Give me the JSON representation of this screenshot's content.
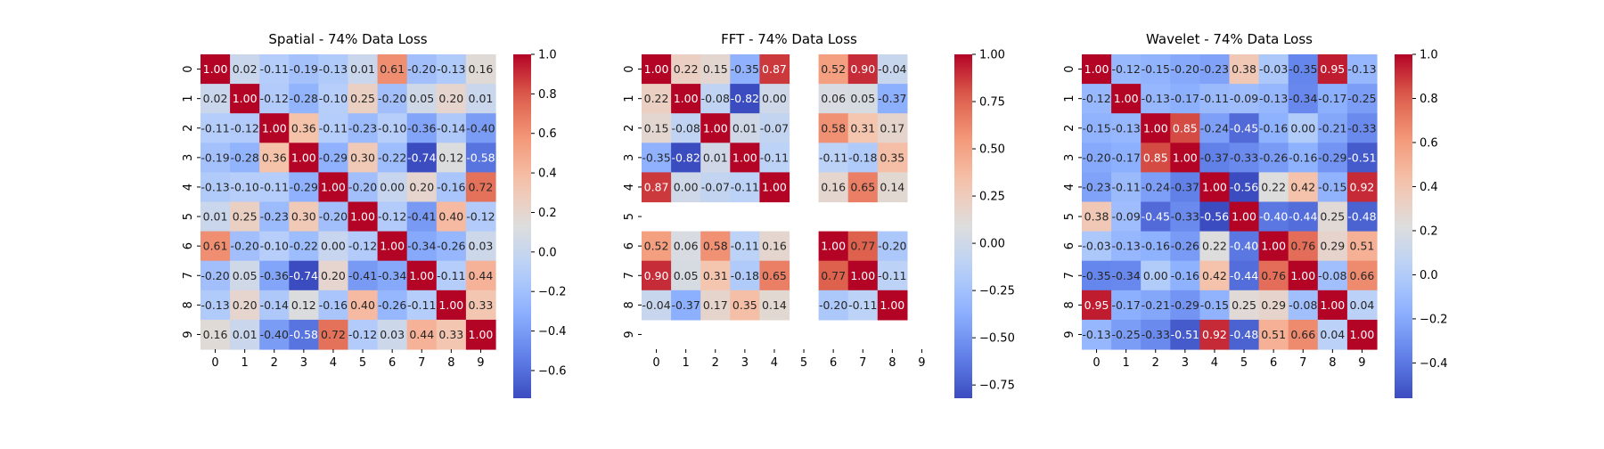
{
  "chart_data": [
    {
      "type": "heatmap",
      "title": "Spatial - 74% Data Loss",
      "x_categories": [
        "0",
        "1",
        "2",
        "3",
        "4",
        "5",
        "6",
        "7",
        "8",
        "9"
      ],
      "y_categories": [
        "0",
        "1",
        "2",
        "3",
        "4",
        "5",
        "6",
        "7",
        "8",
        "9"
      ],
      "colormap": "coolwarm",
      "vmin": -0.74,
      "vmax": 1.0,
      "colorbar_ticks": [
        -0.6,
        -0.4,
        -0.2,
        0.0,
        0.2,
        0.4,
        0.6,
        0.8,
        1.0
      ],
      "colorbar_tick_labels": [
        "−0.6",
        "−0.4",
        "−0.2",
        "0.0",
        "0.2",
        "0.4",
        "0.6",
        "0.8",
        "1.0"
      ],
      "values": [
        [
          1.0,
          0.02,
          -0.11,
          -0.19,
          -0.13,
          0.01,
          0.61,
          -0.2,
          -0.13,
          0.16
        ],
        [
          0.02,
          1.0,
          -0.12,
          -0.28,
          -0.1,
          0.25,
          -0.2,
          0.05,
          0.2,
          0.01
        ],
        [
          -0.11,
          -0.12,
          1.0,
          0.36,
          -0.11,
          -0.23,
          -0.1,
          -0.36,
          -0.14,
          -0.4
        ],
        [
          -0.19,
          -0.28,
          0.36,
          1.0,
          -0.29,
          0.3,
          -0.22,
          -0.74,
          0.12,
          -0.58
        ],
        [
          -0.13,
          -0.1,
          -0.11,
          -0.29,
          1.0,
          -0.2,
          -0.0,
          0.2,
          -0.16,
          0.72
        ],
        [
          0.01,
          0.25,
          -0.23,
          0.3,
          -0.2,
          1.0,
          -0.12,
          -0.41,
          0.4,
          -0.12
        ],
        [
          0.61,
          -0.2,
          -0.1,
          -0.22,
          -0.0,
          -0.12,
          1.0,
          -0.34,
          -0.26,
          0.03
        ],
        [
          -0.2,
          0.05,
          -0.36,
          -0.74,
          0.2,
          -0.41,
          -0.34,
          1.0,
          -0.11,
          0.44
        ],
        [
          -0.13,
          0.2,
          -0.14,
          0.12,
          -0.16,
          0.4,
          -0.26,
          -0.11,
          1.0,
          0.33
        ],
        [
          0.16,
          0.01,
          -0.4,
          -0.58,
          0.72,
          -0.12,
          0.03,
          0.44,
          0.33,
          1.0
        ]
      ]
    },
    {
      "type": "heatmap",
      "title": "FFT - 74% Data Loss",
      "x_categories": [
        "0",
        "1",
        "2",
        "3",
        "4",
        "5",
        "6",
        "7",
        "8",
        "9"
      ],
      "y_categories": [
        "0",
        "1",
        "2",
        "3",
        "4",
        "5",
        "6",
        "7",
        "8",
        "9"
      ],
      "colormap": "coolwarm",
      "vmin": -0.82,
      "vmax": 1.0,
      "colorbar_ticks": [
        -0.75,
        -0.5,
        -0.25,
        0.0,
        0.25,
        0.5,
        0.75,
        1.0
      ],
      "colorbar_tick_labels": [
        "−0.75",
        "−0.50",
        "−0.25",
        "0.00",
        "0.25",
        "0.50",
        "0.75",
        "1.00"
      ],
      "values": [
        [
          1.0,
          0.22,
          0.15,
          -0.35,
          0.87,
          null,
          0.52,
          0.9,
          -0.04,
          null
        ],
        [
          0.22,
          1.0,
          -0.08,
          -0.82,
          -0.0,
          null,
          0.06,
          0.05,
          -0.37,
          null
        ],
        [
          0.15,
          -0.08,
          1.0,
          0.01,
          -0.07,
          null,
          0.58,
          0.31,
          0.17,
          null
        ],
        [
          -0.35,
          -0.82,
          0.01,
          1.0,
          -0.11,
          null,
          -0.11,
          -0.18,
          0.35,
          null
        ],
        [
          0.87,
          -0.0,
          -0.07,
          -0.11,
          1.0,
          null,
          0.16,
          0.65,
          0.14,
          null
        ],
        [
          null,
          null,
          null,
          null,
          null,
          null,
          null,
          null,
          null,
          null
        ],
        [
          0.52,
          0.06,
          0.58,
          -0.11,
          0.16,
          null,
          1.0,
          0.77,
          -0.2,
          null
        ],
        [
          0.9,
          0.05,
          0.31,
          -0.18,
          0.65,
          null,
          0.77,
          1.0,
          -0.11,
          null
        ],
        [
          -0.04,
          -0.37,
          0.17,
          0.35,
          0.14,
          null,
          -0.2,
          -0.11,
          1.0,
          null
        ],
        [
          null,
          null,
          null,
          null,
          null,
          null,
          null,
          null,
          null,
          null
        ]
      ]
    },
    {
      "type": "heatmap",
      "title": "Wavelet - 74% Data Loss",
      "x_categories": [
        "0",
        "1",
        "2",
        "3",
        "4",
        "5",
        "6",
        "7",
        "8",
        "9"
      ],
      "y_categories": [
        "0",
        "1",
        "2",
        "3",
        "4",
        "5",
        "6",
        "7",
        "8",
        "9"
      ],
      "colormap": "coolwarm",
      "vmin": -0.56,
      "vmax": 1.0,
      "colorbar_ticks": [
        -0.4,
        -0.2,
        0.0,
        0.2,
        0.4,
        0.6,
        0.8,
        1.0
      ],
      "colorbar_tick_labels": [
        "−0.4",
        "−0.2",
        "0.0",
        "0.2",
        "0.4",
        "0.6",
        "0.8",
        "1.0"
      ],
      "values": [
        [
          1.0,
          -0.12,
          -0.15,
          -0.2,
          -0.23,
          0.38,
          -0.03,
          -0.35,
          0.95,
          -0.13
        ],
        [
          -0.12,
          1.0,
          -0.13,
          -0.17,
          -0.11,
          -0.09,
          -0.13,
          -0.34,
          -0.17,
          -0.25
        ],
        [
          -0.15,
          -0.13,
          1.0,
          0.85,
          -0.24,
          -0.45,
          -0.16,
          -0.0,
          -0.21,
          -0.33
        ],
        [
          -0.2,
          -0.17,
          0.85,
          1.0,
          -0.37,
          -0.33,
          -0.26,
          -0.16,
          -0.29,
          -0.51
        ],
        [
          -0.23,
          -0.11,
          -0.24,
          -0.37,
          1.0,
          -0.56,
          0.22,
          0.42,
          -0.15,
          0.92
        ],
        [
          0.38,
          -0.09,
          -0.45,
          -0.33,
          -0.56,
          1.0,
          -0.4,
          -0.44,
          0.25,
          -0.48
        ],
        [
          -0.03,
          -0.13,
          -0.16,
          -0.26,
          0.22,
          -0.4,
          1.0,
          0.76,
          0.29,
          0.51
        ],
        [
          -0.35,
          -0.34,
          -0.0,
          -0.16,
          0.42,
          -0.44,
          0.76,
          1.0,
          -0.08,
          0.66
        ],
        [
          0.95,
          -0.17,
          -0.21,
          -0.29,
          -0.15,
          0.25,
          0.29,
          -0.08,
          1.0,
          0.04
        ],
        [
          -0.13,
          -0.25,
          -0.33,
          -0.51,
          0.92,
          -0.48,
          0.51,
          0.66,
          0.04,
          1.0
        ]
      ]
    }
  ]
}
